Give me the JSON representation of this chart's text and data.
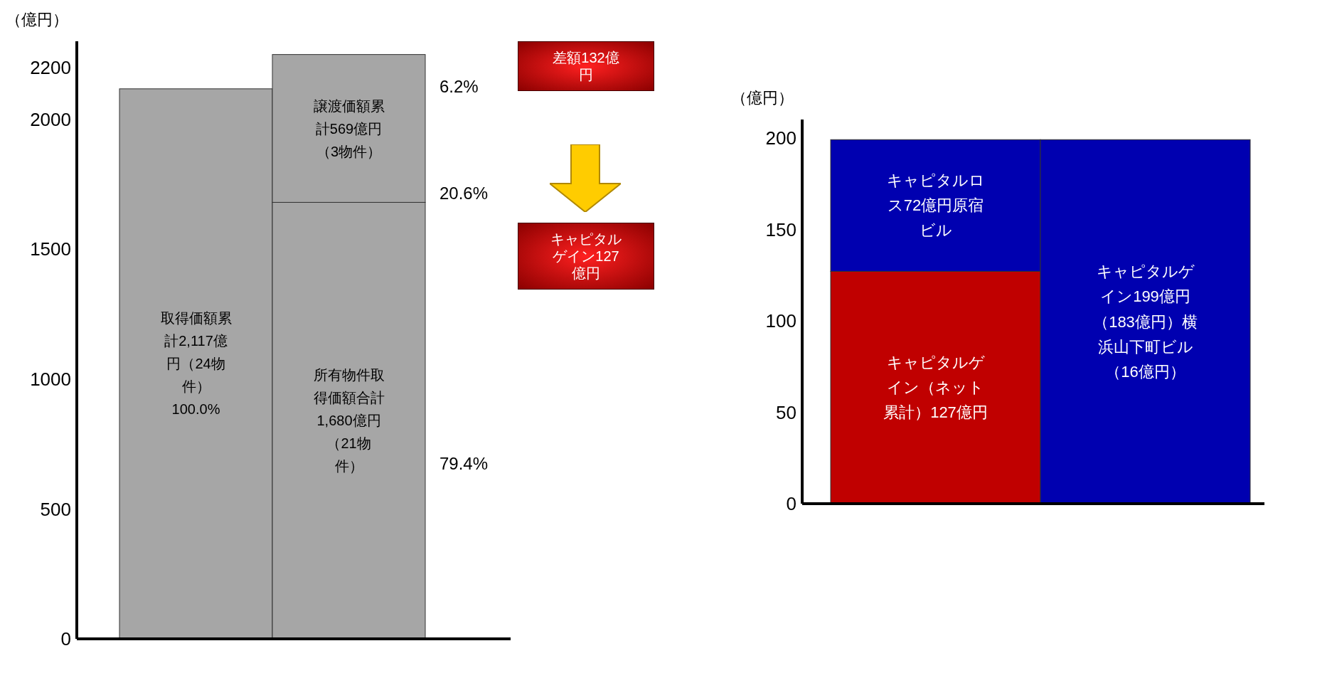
{
  "chart_data": [
    {
      "type": "bar",
      "stacked": true,
      "ylabel": "（億円）",
      "categories": [
        null,
        null
      ],
      "ylim": [
        0,
        2300
      ],
      "yticks": [
        0,
        500,
        1000,
        1500,
        2000,
        2200
      ],
      "grid": false,
      "legend": false,
      "series": [
        {
          "color": "#a6a6a6",
          "values": [
            2117,
            1680
          ],
          "value_labels": [
            "取得価額累計2,117億円（24物件）100.0%",
            "所有物件取得価額合計1,680億円（21物件）"
          ]
        },
        {
          "color": "#a6a6a6",
          "values": [
            null,
            569
          ],
          "value_labels": [
            null,
            "譲渡価額累計569億円（3物件）"
          ]
        }
      ],
      "annotations": [
        "6.2%",
        "20.6%",
        "79.4%",
        "差額132億円",
        "キャピタルゲイン127億円"
      ]
    },
    {
      "type": "bar",
      "stacked": true,
      "ylabel": "（億円）",
      "categories": [
        null,
        null
      ],
      "ylim": [
        0,
        210
      ],
      "yticks": [
        0,
        50,
        100,
        150,
        200
      ],
      "grid": false,
      "legend": false,
      "series": [
        {
          "color": "#c00000",
          "values": [
            127,
            null
          ],
          "value_labels": [
            "キャピタルゲイン（ネット累計）127億円",
            null
          ]
        },
        {
          "color": "#0000b0",
          "values": [
            72,
            199
          ],
          "value_labels": [
            "キャピタルロス72億円原宿ビル",
            "キャピタルゲイン199億円（183億円）横浜山下町ビル（16億円）"
          ]
        }
      ]
    }
  ]
}
